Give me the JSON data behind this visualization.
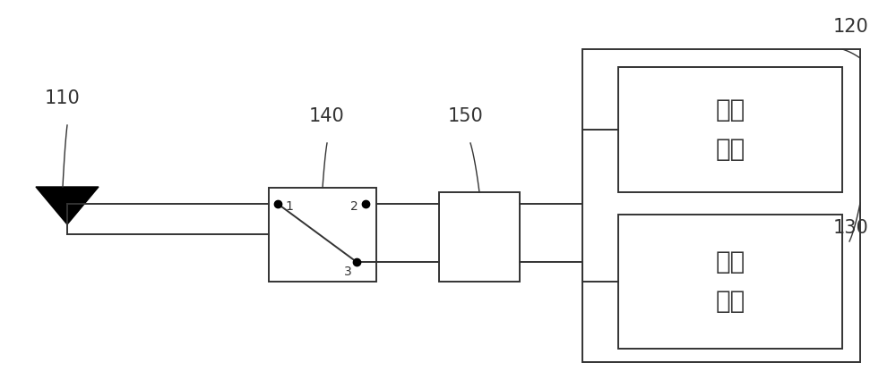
{
  "bg_color": "#ffffff",
  "line_color": "#333333",
  "label_110": "110",
  "label_120": "120",
  "label_130": "130",
  "label_140": "140",
  "label_150": "150",
  "chip1_text_line1": "第一",
  "chip1_text_line2": "芯片",
  "chip2_text_line1": "第二",
  "chip2_text_line2": "芯片",
  "font_size_labels": 15,
  "font_size_chips": 20,
  "font_size_port": 10
}
